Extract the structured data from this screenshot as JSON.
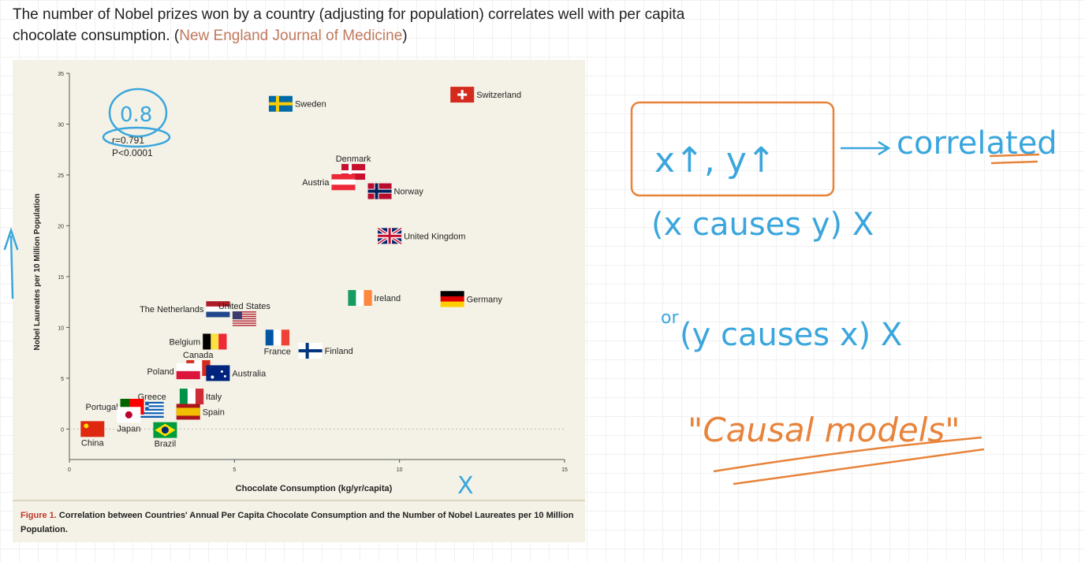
{
  "header": {
    "text": "The number of Nobel prizes won by a country (adjusting for population) correlates well with per capita chocolate consumption. (",
    "source": "New England Journal of Medicine",
    "close": ")"
  },
  "caption": {
    "label": "Figure 1.",
    "text": "Correlation between Countries' Annual Per Capita Chocolate Consumption and the Number of Nobel Laureates per 10 Million Population."
  },
  "chart_data": {
    "type": "scatter",
    "xlabel": "Chocolate Consumption (kg/yr/capita)",
    "ylabel": "Nobel Laureates per 10 Million Population",
    "xlim": [
      0,
      15
    ],
    "ylim": [
      -3,
      35
    ],
    "xticks": [
      0,
      5,
      10,
      15
    ],
    "yticks": [
      0,
      5,
      10,
      15,
      20,
      25,
      30,
      35
    ],
    "stats": {
      "r": "r=0.791",
      "p": "P<0.0001"
    },
    "points": [
      {
        "label": "Switzerland",
        "x": 11.9,
        "y": 32.9,
        "flag": "switzerland"
      },
      {
        "label": "Sweden",
        "x": 6.4,
        "y": 32.0,
        "flag": "sweden"
      },
      {
        "label": "Denmark",
        "x": 8.6,
        "y": 25.3,
        "flag": "denmark"
      },
      {
        "label": "Austria",
        "x": 8.3,
        "y": 24.3,
        "flag": "austria"
      },
      {
        "label": "Norway",
        "x": 9.4,
        "y": 23.4,
        "flag": "norway"
      },
      {
        "label": "United Kingdom",
        "x": 9.7,
        "y": 19.0,
        "flag": "uk"
      },
      {
        "label": "Ireland",
        "x": 8.8,
        "y": 12.9,
        "flag": "ireland"
      },
      {
        "label": "Germany",
        "x": 11.6,
        "y": 12.8,
        "flag": "germany"
      },
      {
        "label": "The Netherlands",
        "x": 4.5,
        "y": 11.8,
        "flag": "netherlands"
      },
      {
        "label": "United States",
        "x": 5.3,
        "y": 10.8,
        "flag": "usa"
      },
      {
        "label": "France",
        "x": 6.3,
        "y": 9.0,
        "flag": "france"
      },
      {
        "label": "Finland",
        "x": 7.3,
        "y": 7.7,
        "flag": "finland"
      },
      {
        "label": "Belgium",
        "x": 4.4,
        "y": 8.6,
        "flag": "belgium"
      },
      {
        "label": "Canada",
        "x": 3.9,
        "y": 6.0,
        "flag": "canada"
      },
      {
        "label": "Australia",
        "x": 4.5,
        "y": 5.5,
        "flag": "australia"
      },
      {
        "label": "Poland",
        "x": 3.6,
        "y": 5.7,
        "flag": "poland"
      },
      {
        "label": "Greece",
        "x": 2.5,
        "y": 1.9,
        "flag": "greece"
      },
      {
        "label": "Portugal",
        "x": 1.9,
        "y": 2.2,
        "flag": "portugal"
      },
      {
        "label": "Italy",
        "x": 3.7,
        "y": 3.2,
        "flag": "italy"
      },
      {
        "label": "Spain",
        "x": 3.6,
        "y": 1.7,
        "flag": "spain"
      },
      {
        "label": "Japan",
        "x": 1.8,
        "y": 1.4,
        "flag": "japan"
      },
      {
        "label": "Brazil",
        "x": 2.9,
        "y": -0.1,
        "flag": "brazil"
      },
      {
        "label": "China",
        "x": 0.7,
        "y": 0.0,
        "flag": "china"
      }
    ]
  },
  "annotations": {
    "colors": {
      "blue": "#3aa6dd",
      "orange": "#e8833a"
    },
    "circled_value": "0.8",
    "line_correlated": "x↑, y↑",
    "correlated_word": "correlated",
    "line1": "(x causes y) X",
    "line2_prefix": "or",
    "line2": "(y causes x) X",
    "causal_models": "\"Causal models\"",
    "x_mark": "X"
  }
}
